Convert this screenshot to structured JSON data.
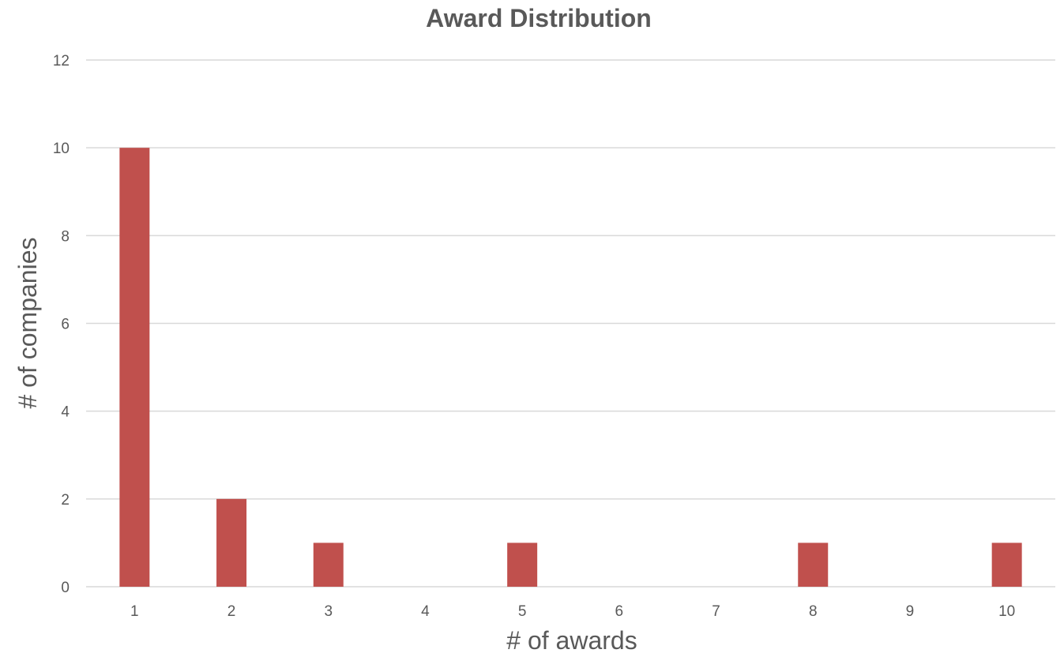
{
  "chart_data": {
    "type": "bar",
    "title": "Award Distribution",
    "xlabel": "# of awards",
    "ylabel": "# of companies",
    "categories": [
      "1",
      "2",
      "3",
      "4",
      "5",
      "6",
      "7",
      "8",
      "9",
      "10"
    ],
    "values": [
      10,
      2,
      1,
      0,
      1,
      0,
      0,
      1,
      0,
      1
    ],
    "ylim": [
      0,
      12
    ],
    "yticks": [
      "0",
      "2",
      "4",
      "6",
      "8",
      "10",
      "12"
    ],
    "grid": true,
    "legend": "none",
    "bar_color": "#c0504d",
    "grid_color": "#d9d9d9",
    "text_color": "#595959"
  }
}
